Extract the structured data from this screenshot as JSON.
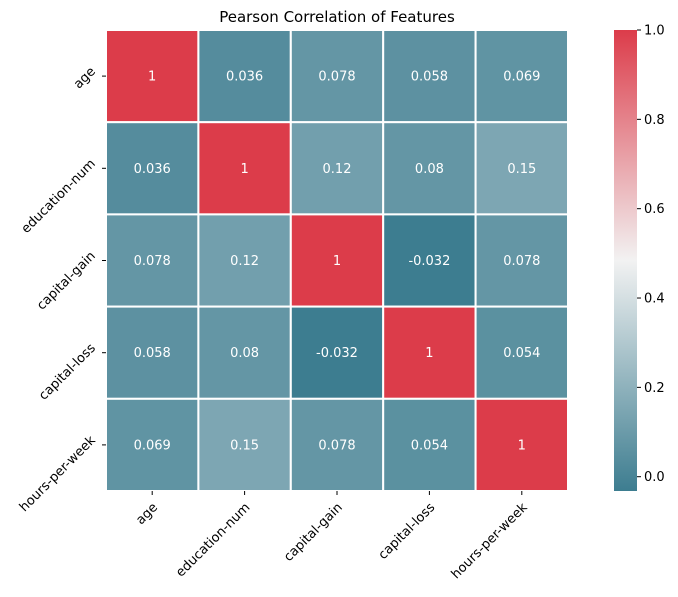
{
  "chart_data": {
    "type": "heatmap",
    "title": "Pearson Correlation of Features",
    "xlabel": "",
    "ylabel": "",
    "x_categories": [
      "age",
      "education-num",
      "capital-gain",
      "capital-loss",
      "hours-per-week"
    ],
    "y_categories": [
      "age",
      "education-num",
      "capital-gain",
      "capital-loss",
      "hours-per-week"
    ],
    "values": [
      [
        1,
        0.036,
        0.078,
        0.058,
        0.069
      ],
      [
        0.036,
        1,
        0.12,
        0.08,
        0.15
      ],
      [
        0.078,
        0.12,
        1,
        -0.032,
        0.078
      ],
      [
        0.058,
        0.08,
        -0.032,
        1,
        0.054
      ],
      [
        0.069,
        0.15,
        0.078,
        0.054,
        1
      ]
    ],
    "cell_labels": [
      [
        "1",
        "0.036",
        "0.078",
        "0.058",
        "0.069"
      ],
      [
        "0.036",
        "1",
        "0.12",
        "0.08",
        "0.15"
      ],
      [
        "0.078",
        "0.12",
        "1",
        "-0.032",
        "0.078"
      ],
      [
        "0.058",
        "0.08",
        "-0.032",
        "1",
        "0.054"
      ],
      [
        "0.069",
        "0.15",
        "0.078",
        "0.054",
        "1"
      ]
    ],
    "color_range": [
      -0.032,
      1
    ],
    "colormap": {
      "low": "#3d7d90",
      "mid": "#f2f2f2",
      "high": "#dc3c4a"
    },
    "colorbar_ticks": [
      0.0,
      0.2,
      0.4,
      0.6,
      0.8,
      1.0
    ],
    "colorbar_tick_labels": [
      "0.0",
      "0.2",
      "0.4",
      "0.6",
      "0.8",
      "1.0"
    ],
    "cell_border_color": "#ffffff",
    "text_color": "#ffffff",
    "grid": false,
    "legend": "colorbar-right"
  }
}
